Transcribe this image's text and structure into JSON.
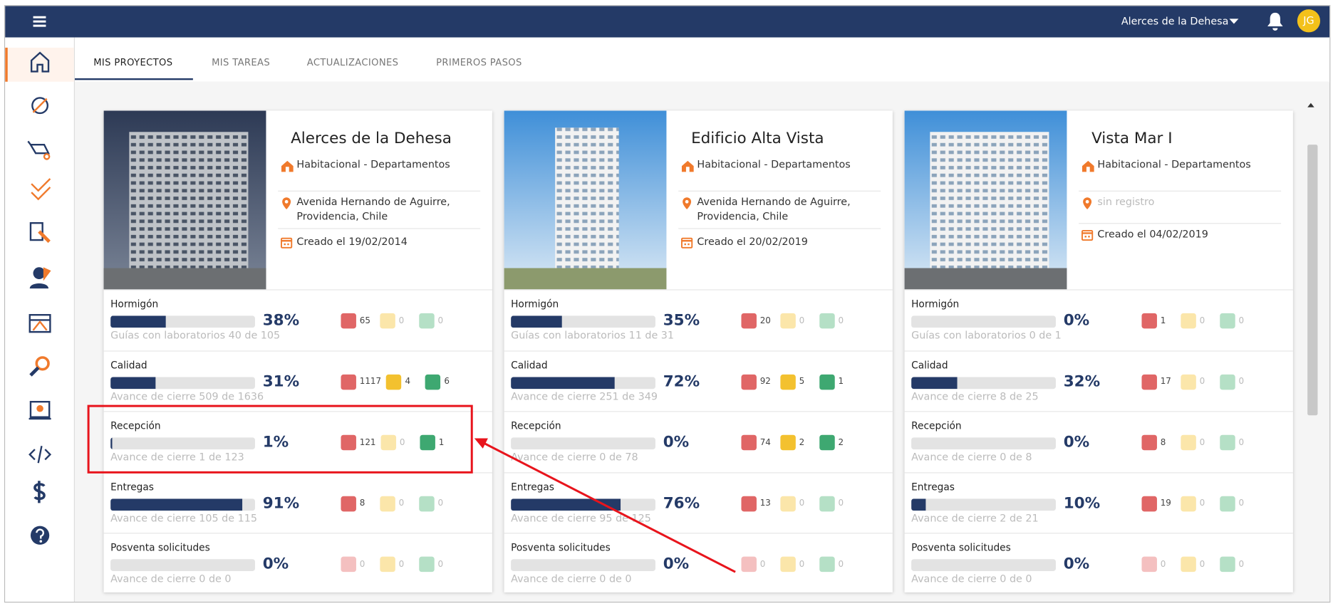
{
  "header": {
    "project": "Alerces de la Dehesa",
    "avatar": "JG"
  },
  "tabs": [
    "MIS PROYECTOS",
    "MIS TAREAS",
    "ACTUALIZACIONES",
    "PRIMEROS PASOS"
  ],
  "projects": [
    {
      "name": "Alerces de la Dehesa",
      "type": "Habitacional - Departamentos",
      "address": "Avenida Hernando de Aguirre, Providencia, Chile",
      "created": "Creado el 19/02/2014",
      "modules": [
        {
          "name": "Hormigón",
          "progress": {
            "value": 38,
            "label": "38%"
          },
          "detail": "Guías con laboratorios 40 de 105",
          "counts": [
            65,
            0,
            0
          ]
        },
        {
          "name": "Calidad",
          "progress": {
            "value": 31,
            "label": "31%"
          },
          "detail": "Avance de cierre 509 de 1636",
          "counts": [
            1117,
            4,
            6
          ]
        },
        {
          "name": "Recepción",
          "progress": {
            "value": 1,
            "label": "1%"
          },
          "detail": "Avance de cierre 1 de 123",
          "counts": [
            121,
            0,
            1
          ]
        },
        {
          "name": "Entregas",
          "progress": {
            "value": 91,
            "label": "91%"
          },
          "detail": "Avance de cierre 105 de 115",
          "counts": [
            8,
            0,
            0
          ]
        },
        {
          "name": "Posventa solicitudes",
          "progress": {
            "value": 0,
            "label": "0%"
          },
          "detail": "Avance de cierre 0 de 0",
          "counts": [
            0,
            0,
            0
          ]
        }
      ]
    },
    {
      "name": "Edificio Alta Vista",
      "type": "Habitacional - Departamentos",
      "address": "Avenida Hernando de Aguirre, Providencia, Chile",
      "created": "Creado el 20/02/2019",
      "modules": [
        {
          "name": "Hormigón",
          "progress": {
            "value": 35,
            "label": "35%"
          },
          "detail": "Guías con laboratorios 11 de 31",
          "counts": [
            20,
            0,
            0
          ]
        },
        {
          "name": "Calidad",
          "progress": {
            "value": 72,
            "label": "72%"
          },
          "detail": "Avance de cierre 251 de 349",
          "counts": [
            92,
            5,
            1
          ]
        },
        {
          "name": "Recepción",
          "progress": {
            "value": 0,
            "label": "0%"
          },
          "detail": "Avance de cierre 0 de 78",
          "counts": [
            74,
            2,
            2
          ]
        },
        {
          "name": "Entregas",
          "progress": {
            "value": 76,
            "label": "76%"
          },
          "detail": "Avance de cierre 95 de 125",
          "counts": [
            13,
            0,
            0
          ]
        },
        {
          "name": "Posventa solicitudes",
          "progress": {
            "value": 0,
            "label": "0%"
          },
          "detail": "Avance de cierre 0 de 0",
          "counts": [
            0,
            0,
            0
          ]
        }
      ]
    },
    {
      "name": "Vista Mar I",
      "type": "Habitacional - Departamentos",
      "address": "sin registro",
      "created": "Creado el 04/02/2019",
      "modules": [
        {
          "name": "Hormigón",
          "progress": {
            "value": 0,
            "label": "0%"
          },
          "detail": "Guías con laboratorios 0 de 1",
          "counts": [
            1,
            0,
            0
          ]
        },
        {
          "name": "Calidad",
          "progress": {
            "value": 32,
            "label": "32%"
          },
          "detail": "Avance de cierre 8 de 25",
          "counts": [
            17,
            0,
            0
          ]
        },
        {
          "name": "Recepción",
          "progress": {
            "value": 0,
            "label": "0%"
          },
          "detail": "Avance de cierre 0 de 8",
          "counts": [
            8,
            0,
            0
          ]
        },
        {
          "name": "Entregas",
          "progress": {
            "value": 10,
            "label": "10%"
          },
          "detail": "Avance de cierre 2 de 21",
          "counts": [
            19,
            0,
            0
          ]
        },
        {
          "name": "Posventa solicitudes",
          "progress": {
            "value": 0,
            "label": "0%"
          },
          "detail": "Avance de cierre 0 de 0",
          "counts": [
            0,
            0,
            0
          ]
        }
      ]
    }
  ]
}
